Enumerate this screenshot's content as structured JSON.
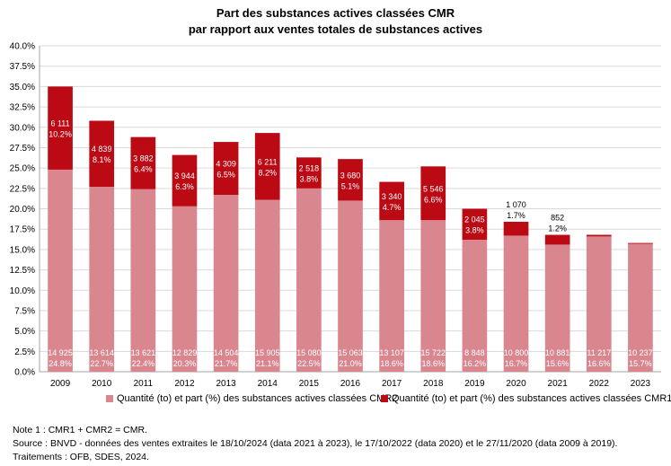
{
  "title": [
    "Part des substances actives classées CMR",
    "par rapport aux ventes totales de substances actives"
  ],
  "colors": {
    "cmr2": "#d9868f",
    "cmr1": "#bb0a14",
    "grid": "#d9d9d9",
    "axis": "#a6a6a6"
  },
  "chart_data": {
    "type": "bar",
    "stacked": true,
    "categories": [
      "2009",
      "2010",
      "2011",
      "2012",
      "2013",
      "2014",
      "2015",
      "2016",
      "2017",
      "2018",
      "2019",
      "2020",
      "2021",
      "2022",
      "2023"
    ],
    "ylim": [
      0,
      40
    ],
    "yticks": [
      "0.0%",
      "2.5%",
      "5.0%",
      "7.5%",
      "10.0%",
      "12.5%",
      "15.0%",
      "17.5%",
      "20.0%",
      "22.5%",
      "25.0%",
      "27.5%",
      "30.0%",
      "32.5%",
      "35.0%",
      "37.5%",
      "40.0%"
    ],
    "series": [
      {
        "name": "Quantité (to) et part (%) des substances actives classées CMR2",
        "values": [
          24.8,
          22.7,
          22.4,
          20.3,
          21.7,
          21.1,
          22.5,
          21.0,
          18.6,
          18.6,
          16.2,
          16.7,
          15.6,
          16.6,
          15.7
        ],
        "qty_labels": [
          "14 925",
          "13 614",
          "13 621",
          "12 829",
          "14 504",
          "15 905",
          "15 080",
          "15 063",
          "13 107",
          "15 722",
          "8 848",
          "10 800",
          "10 881",
          "11 217",
          "10 237"
        ],
        "pct_labels": [
          "24.8%",
          "22.7%",
          "22.4%",
          "20.3%",
          "21.7%",
          "21.1%",
          "22.5%",
          "21.0%",
          "18.6%",
          "18.6%",
          "16.2%",
          "16.7%",
          "15.6%",
          "16.6%",
          "15.7%"
        ]
      },
      {
        "name": "Quantité (to) et part (%) des substances actives classées CMR1",
        "values": [
          10.2,
          8.1,
          6.4,
          6.3,
          6.5,
          8.2,
          3.8,
          5.1,
          4.7,
          6.6,
          3.8,
          1.7,
          1.2,
          0.2,
          0.1
        ],
        "qty_labels": [
          "6 111",
          "4 839",
          "3 882",
          "3 944",
          "4 309",
          "6 211",
          "2 518",
          "3 680",
          "3 340",
          "5 546",
          "2 045",
          "1 070",
          "852",
          "",
          ""
        ],
        "pct_labels": [
          "10.2%",
          "8.1%",
          "6.4%",
          "6.3%",
          "6.5%",
          "8.2%",
          "3.8%",
          "5.1%",
          "4.7%",
          "6.6%",
          "3.8%",
          "1.7%",
          "1.2%",
          "",
          ""
        ]
      }
    ]
  },
  "notes": [
    "Note 1 : CMR1 + CMR2 = CMR.",
    "Source : BNVD - données des ventes extraites le 18/10/2024 (data 2021 à 2023), le 17/10/2022 (data 2020) et le 27/11/2020 (data 2009 à 2019).",
    "Traitements : OFB, SDES, 2024."
  ]
}
